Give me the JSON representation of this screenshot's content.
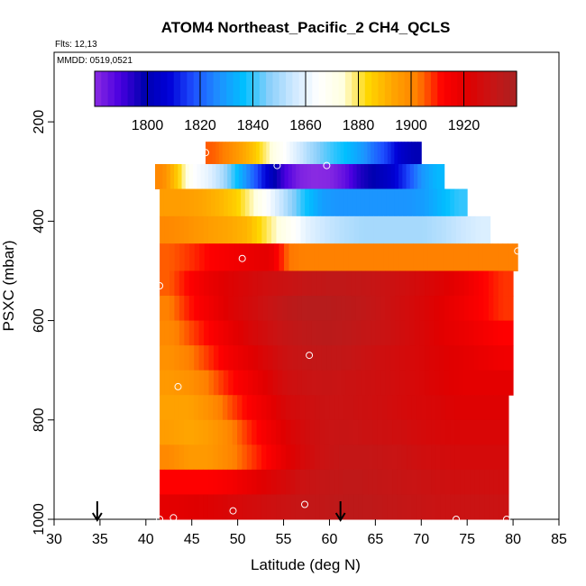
{
  "chart_data": {
    "type": "heatmap",
    "title": "ATOM4 Northeast_Pacific_2 CH4_QCLS",
    "info_lines": [
      "Flts: 12,13",
      "MMDD: 0519,0521"
    ],
    "xlabel": "Latitude (deg N)",
    "ylabel": "PSXC (mbar)",
    "xlim": [
      30,
      85
    ],
    "ylim": [
      1000,
      60
    ],
    "x_ticks": [
      30,
      35,
      40,
      45,
      50,
      55,
      60,
      65,
      70,
      75,
      80,
      85
    ],
    "y_ticks": [
      200,
      400,
      600,
      800,
      1000
    ],
    "colorbar": {
      "min": 1780,
      "max": 1940,
      "ticks": [
        1800,
        1820,
        1840,
        1860,
        1880,
        1900,
        1920
      ],
      "colors": [
        "#8a2be2",
        "#4b00e0",
        "#0000b0",
        "#0000d8",
        "#1e50ff",
        "#1e90ff",
        "#00bfff",
        "#87cefa",
        "#cde8ff",
        "#ffffff",
        "#ffffe0",
        "#ffd700",
        "#ffa500",
        "#ff8000",
        "#ff0000",
        "#e00000",
        "#c81414",
        "#aa2222"
      ]
    },
    "rows": [
      {
        "p_top": 240,
        "p_bot": 285,
        "lat_start": 46.5,
        "lat_end": 70,
        "values": [
          1905,
          1902,
          1895,
          1888,
          1878,
          1868,
          1860,
          1852,
          1845,
          1840,
          1836,
          1830,
          1822,
          1815,
          1805,
          1800
        ]
      },
      {
        "p_top": 285,
        "p_bot": 335,
        "lat_start": 41,
        "lat_end": 72.5,
        "values": [
          1900,
          1885,
          1865,
          1860,
          1850,
          1835,
          1820,
          1805,
          1790,
          1782,
          1780,
          1781,
          1786,
          1795,
          1800,
          1805,
          1815,
          1828,
          1835
        ]
      },
      {
        "p_top": 335,
        "p_bot": 390,
        "lat_start": 41.5,
        "lat_end": 75,
        "values": [
          1895,
          1895,
          1893,
          1890,
          1885,
          1875,
          1862,
          1850,
          1838,
          1830,
          1828,
          1828,
          1828,
          1828,
          1828,
          1830,
          1835,
          1840
        ]
      },
      {
        "p_top": 390,
        "p_bot": 445,
        "lat_start": 41.5,
        "lat_end": 77.5,
        "values": [
          1900,
          1898,
          1895,
          1893,
          1890,
          1880,
          1870,
          1860,
          1855,
          1852,
          1850,
          1850,
          1850,
          1850,
          1852,
          1855,
          1858
        ]
      },
      {
        "p_top": 445,
        "p_bot": 500,
        "lat_start": 41.5,
        "lat_end": 80.5,
        "values": [
          1905,
          1908,
          1912,
          1915,
          1918,
          1920,
          1903,
          1902,
          1902,
          1902,
          1902,
          1902,
          1902,
          1902,
          1902,
          1902,
          1902,
          1902
        ]
      },
      {
        "p_top": 500,
        "p_bot": 550,
        "lat_start": 41.5,
        "lat_end": 80,
        "values": [
          1905,
          1912,
          1918,
          1922,
          1925,
          1928,
          1930,
          1932,
          1933,
          1933,
          1932,
          1930,
          1928,
          1925,
          1922,
          1918,
          1912,
          1908
        ]
      },
      {
        "p_top": 550,
        "p_bot": 600,
        "lat_start": 41.5,
        "lat_end": 80,
        "values": [
          1902,
          1910,
          1916,
          1922,
          1926,
          1930,
          1934,
          1936,
          1936,
          1935,
          1933,
          1930,
          1927,
          1924,
          1920,
          1916,
          1912,
          1908
        ]
      },
      {
        "p_top": 600,
        "p_bot": 650,
        "lat_start": 41.5,
        "lat_end": 80,
        "values": [
          1900,
          1906,
          1912,
          1918,
          1924,
          1928,
          1932,
          1934,
          1935,
          1934,
          1932,
          1930,
          1927,
          1924,
          1920,
          1918,
          1915,
          1912
        ]
      },
      {
        "p_top": 650,
        "p_bot": 700,
        "lat_start": 41.5,
        "lat_end": 80,
        "values": [
          1898,
          1902,
          1908,
          1915,
          1920,
          1925,
          1930,
          1932,
          1933,
          1932,
          1930,
          1928,
          1926,
          1924,
          1922,
          1920,
          1918,
          1916
        ]
      },
      {
        "p_top": 700,
        "p_bot": 750,
        "lat_start": 41.5,
        "lat_end": 80,
        "values": [
          1896,
          1898,
          1903,
          1910,
          1916,
          1922,
          1928,
          1930,
          1931,
          1930,
          1929,
          1928,
          1926,
          1924,
          1922,
          1920,
          1920,
          1920
        ]
      },
      {
        "p_top": 750,
        "p_bot": 800,
        "lat_start": 41.5,
        "lat_end": 79.5,
        "values": [
          1894,
          1894,
          1898,
          1905,
          1912,
          1918,
          1925,
          1928,
          1930,
          1930,
          1929,
          1928,
          1926,
          1925,
          1924,
          1922,
          1922,
          1922
        ]
      },
      {
        "p_top": 800,
        "p_bot": 850,
        "lat_start": 41.5,
        "lat_end": 79.5,
        "values": [
          1895,
          1893,
          1895,
          1900,
          1908,
          1915,
          1922,
          1927,
          1930,
          1931,
          1930,
          1929,
          1928,
          1926,
          1925,
          1924,
          1924,
          1924
        ]
      },
      {
        "p_top": 850,
        "p_bot": 900,
        "lat_start": 41.5,
        "lat_end": 79.5,
        "values": [
          1900,
          1896,
          1896,
          1900,
          1906,
          1912,
          1920,
          1926,
          1930,
          1932,
          1932,
          1931,
          1930,
          1928,
          1927,
          1926,
          1926,
          1926
        ]
      },
      {
        "p_top": 900,
        "p_bot": 950,
        "lat_start": 41.5,
        "lat_end": 79.5,
        "values": [
          1912,
          1912,
          1912,
          1914,
          1918,
          1922,
          1926,
          1930,
          1932,
          1933,
          1933,
          1932,
          1931,
          1930,
          1929,
          1928,
          1928,
          1928
        ]
      },
      {
        "p_top": 950,
        "p_bot": 1000,
        "lat_start": 41.5,
        "lat_end": 79.5,
        "values": [
          1920,
          1921,
          1922,
          1924,
          1926,
          1928,
          1930,
          1932,
          1933,
          1934,
          1934,
          1933,
          1932,
          1931,
          1930,
          1930,
          1930,
          1930
        ]
      }
    ],
    "points": [
      {
        "lat": 69.7,
        "p": 229
      },
      {
        "lat": 46.5,
        "p": 262
      },
      {
        "lat": 54.3,
        "p": 288
      },
      {
        "lat": 59.7,
        "p": 288
      },
      {
        "lat": 41,
        "p": 270
      },
      {
        "lat": 50.5,
        "p": 475
      },
      {
        "lat": 41.5,
        "p": 530
      },
      {
        "lat": 80.5,
        "p": 460
      },
      {
        "lat": 57.8,
        "p": 670
      },
      {
        "lat": 43.5,
        "p": 733
      },
      {
        "lat": 49.5,
        "p": 983
      },
      {
        "lat": 57.3,
        "p": 970
      },
      {
        "lat": 41.5,
        "p": 1000
      },
      {
        "lat": 43.0,
        "p": 997
      },
      {
        "lat": 73.8,
        "p": 1000
      },
      {
        "lat": 79.3,
        "p": 1000
      }
    ],
    "arrows": [
      {
        "lat": 34.7
      },
      {
        "lat": 61.2
      }
    ]
  }
}
